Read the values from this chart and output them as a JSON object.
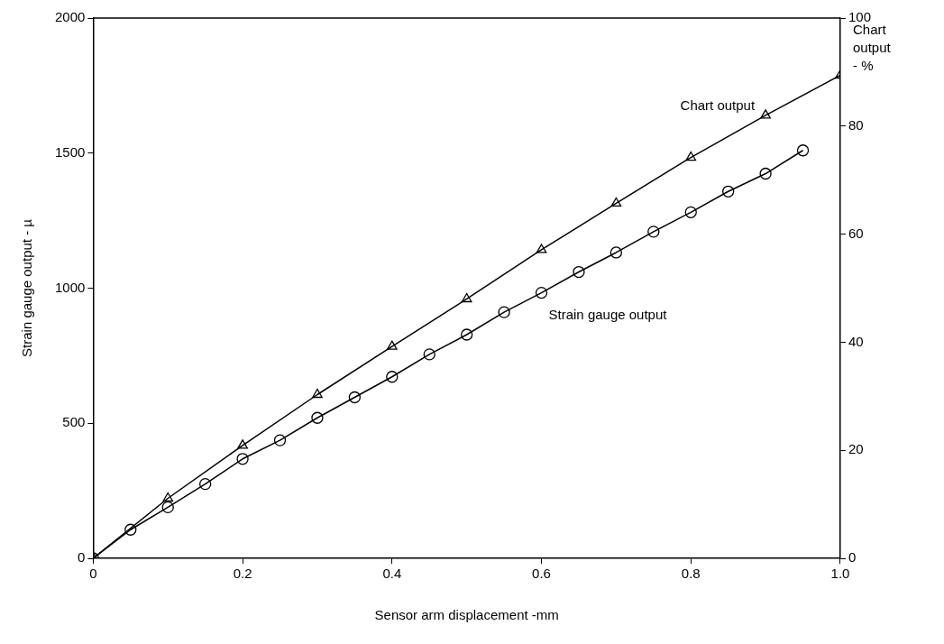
{
  "chart_data": {
    "type": "line",
    "xlabel": "Sensor arm displacement -mm",
    "ylabel": "Strain gauge output - µ",
    "y2label": "Chart output - %",
    "xlim": [
      0,
      1
    ],
    "xticks": [
      0,
      0.2,
      0.4,
      0.6,
      0.8,
      {
        "value": 1,
        "label": "1.0"
      }
    ],
    "ylim": [
      0,
      2000
    ],
    "yticks": [
      0,
      500,
      1000,
      1500,
      2000
    ],
    "y2lim": [
      0,
      100
    ],
    "y2ticks": [
      0,
      20,
      40,
      60,
      80,
      100
    ],
    "grid": false,
    "legend": false,
    "line_style": "solid",
    "series": [
      {
        "name": "Chart output",
        "color": "#000000",
        "marker": "triangle",
        "axis": "y2",
        "x": [
          0,
          0.1,
          0.2,
          0.3,
          0.4,
          0.5,
          0.6,
          0.7,
          0.8,
          0.9,
          1.0
        ],
        "values": [
          0,
          11.1,
          20.9,
          30.3,
          39.2,
          48,
          57.1,
          65.7,
          74.2,
          82,
          89.4
        ]
      },
      {
        "name": "Strain gauge output",
        "color": "#000000",
        "marker": "circle",
        "x": [
          0,
          0.05,
          0.1,
          0.15,
          0.2,
          0.25,
          0.3,
          0.35,
          0.4,
          0.45,
          0.5,
          0.55,
          0.6,
          0.65,
          0.7,
          0.75,
          0.8,
          0.85,
          0.9,
          0.95
        ],
        "values": [
          0,
          106,
          189,
          275,
          368,
          437,
          520,
          596,
          672,
          755,
          828,
          911,
          983,
          1060,
          1132,
          1209,
          1281,
          1358,
          1424,
          1510
        ]
      }
    ]
  }
}
